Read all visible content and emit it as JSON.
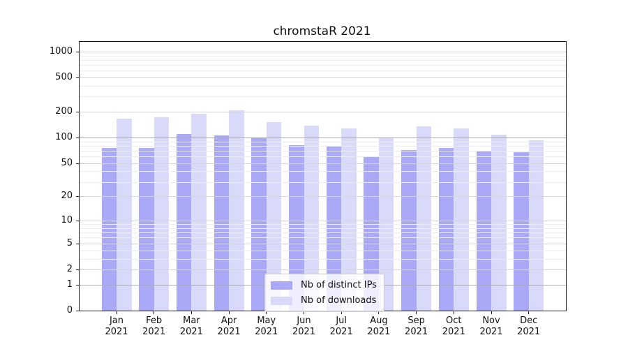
{
  "chart_data": {
    "type": "bar",
    "title": "chromstaR 2021",
    "categories": [
      "Jan 2021",
      "Feb 2021",
      "Mar 2021",
      "Apr 2021",
      "May 2021",
      "Jun 2021",
      "Jul 2021",
      "Aug 2021",
      "Sep 2021",
      "Oct 2021",
      "Nov 2021",
      "Dec 2021"
    ],
    "series": [
      {
        "name": "Nb of distinct IPs",
        "color": "#a9a9f8",
        "values": [
          76,
          76,
          110,
          106,
          100,
          82,
          78,
          60,
          72,
          76,
          70,
          68
        ]
      },
      {
        "name": "Nb of downloads",
        "color": "#d9d9fa",
        "values": [
          167,
          174,
          189,
          207,
          152,
          138,
          128,
          100,
          136,
          127,
          107,
          93
        ]
      }
    ],
    "yscale": "log10(value+1)",
    "ylim": [
      0,
      1280
    ],
    "yticks": [
      0,
      1,
      2,
      5,
      10,
      20,
      50,
      100,
      200,
      500,
      1000
    ],
    "emphasized_gridlines": [
      1,
      100
    ],
    "minor_gridlines": [
      3,
      4,
      6,
      7,
      8,
      9,
      30,
      40,
      60,
      70,
      80,
      90,
      300,
      400,
      600,
      700,
      800,
      900
    ],
    "grid": "on",
    "legend_position": "bottom-center-inside",
    "xlabel": "",
    "ylabel": ""
  },
  "legend": {
    "items": [
      {
        "label": "Nb of distinct IPs",
        "color": "#a9a9f8"
      },
      {
        "label": "Nb of downloads",
        "color": "#d9d9fa"
      }
    ]
  },
  "colors": {
    "distinct_ips": "#a9a9f8",
    "downloads": "#d9d9fa",
    "grid_major": "#ababab",
    "grid_labeled": "#d6d6d6",
    "grid_minor": "#ededed",
    "axis": "#1a1a1a"
  }
}
